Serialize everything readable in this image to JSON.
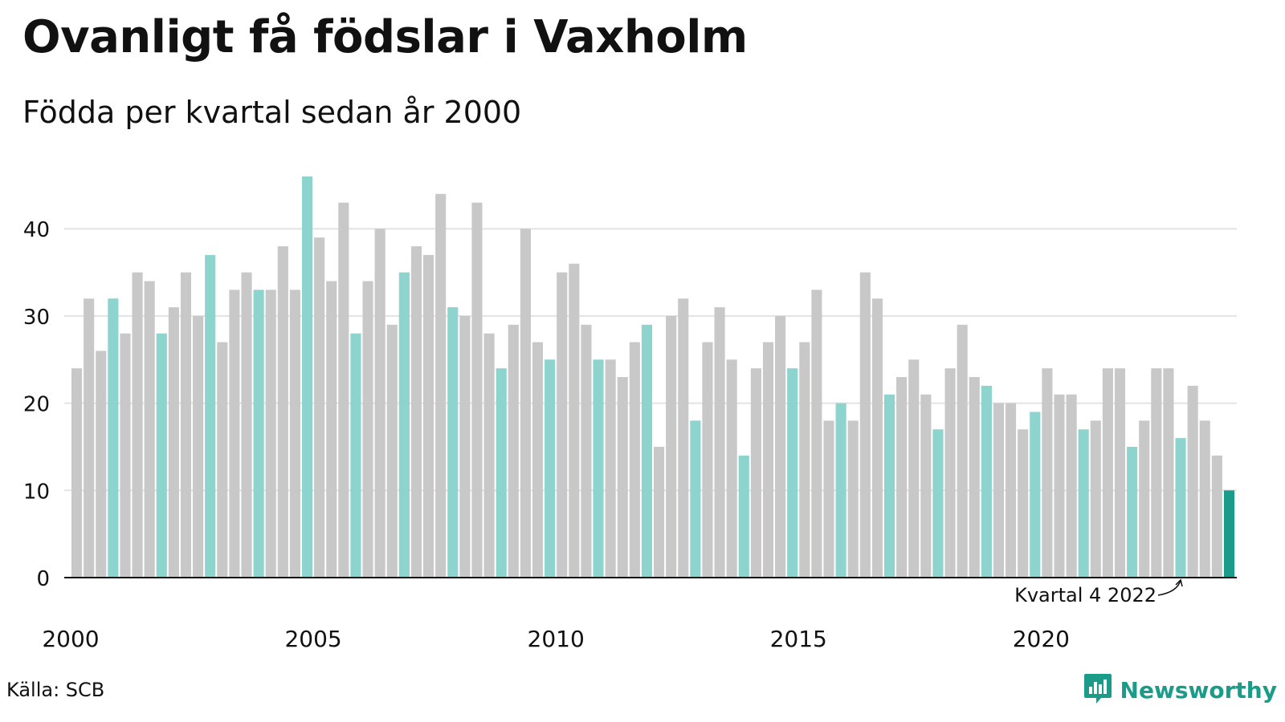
{
  "title": "Ovanligt få födslar i Vaxholm",
  "subtitle": "Födda per kvartal sedan år 2000",
  "source": "Källa: SCB",
  "brand": "Newsworthy",
  "brand_icon": "newsworthy-logo-icon",
  "colors": {
    "bar_default": "#c8c8c8",
    "bar_same_quarter": "#8dd3ce",
    "bar_latest": "#1b9b89",
    "grid": "#e3e3e3",
    "axis": "#111111",
    "brand": "#1b9b89"
  },
  "chart_data": {
    "type": "bar",
    "title": "Ovanligt få födslar i Vaxholm",
    "subtitle": "Födda per kvartal sedan år 2000",
    "xlabel": "",
    "ylabel": "",
    "ylim": [
      0,
      46
    ],
    "yticks": [
      0,
      10,
      20,
      30,
      40
    ],
    "xticks": [
      "2000",
      "2005",
      "2010",
      "2015",
      "2020"
    ],
    "grid": true,
    "highlight_quarter": 4,
    "categories": [
      "2000 K1",
      "2000 K2",
      "2000 K3",
      "2000 K4",
      "2001 K1",
      "2001 K2",
      "2001 K3",
      "2001 K4",
      "2002 K1",
      "2002 K2",
      "2002 K3",
      "2002 K4",
      "2003 K1",
      "2003 K2",
      "2003 K3",
      "2003 K4",
      "2004 K1",
      "2004 K2",
      "2004 K3",
      "2004 K4",
      "2005 K1",
      "2005 K2",
      "2005 K3",
      "2005 K4",
      "2006 K1",
      "2006 K2",
      "2006 K3",
      "2006 K4",
      "2007 K1",
      "2007 K2",
      "2007 K3",
      "2007 K4",
      "2008 K1",
      "2008 K2",
      "2008 K3",
      "2008 K4",
      "2009 K1",
      "2009 K2",
      "2009 K3",
      "2009 K4",
      "2010 K1",
      "2010 K2",
      "2010 K3",
      "2010 K4",
      "2011 K1",
      "2011 K2",
      "2011 K3",
      "2011 K4",
      "2012 K1",
      "2012 K2",
      "2012 K3",
      "2012 K4",
      "2013 K1",
      "2013 K2",
      "2013 K3",
      "2013 K4",
      "2014 K1",
      "2014 K2",
      "2014 K3",
      "2014 K4",
      "2015 K1",
      "2015 K2",
      "2015 K3",
      "2015 K4",
      "2016 K1",
      "2016 K2",
      "2016 K3",
      "2016 K4",
      "2017 K1",
      "2017 K2",
      "2017 K3",
      "2017 K4",
      "2018 K1",
      "2018 K2",
      "2018 K3",
      "2018 K4",
      "2019 K1",
      "2019 K2",
      "2019 K3",
      "2019 K4",
      "2020 K1",
      "2020 K2",
      "2020 K3",
      "2020 K4",
      "2021 K1",
      "2021 K2",
      "2021 K3",
      "2021 K4",
      "2022 K1",
      "2022 K2",
      "2022 K3",
      "2022 K4",
      "2023 K1",
      "2023 K2",
      "2023 K3",
      "2023 K4"
    ],
    "values": [
      24,
      32,
      26,
      32,
      28,
      35,
      34,
      28,
      31,
      35,
      30,
      37,
      27,
      33,
      35,
      33,
      33,
      38,
      33,
      46,
      39,
      34,
      43,
      28,
      34,
      40,
      29,
      35,
      38,
      37,
      44,
      31,
      30,
      43,
      28,
      24,
      29,
      40,
      27,
      25,
      35,
      36,
      29,
      25,
      25,
      23,
      27,
      29,
      15,
      30,
      32,
      18,
      27,
      31,
      25,
      14,
      24,
      27,
      30,
      24,
      27,
      33,
      18,
      20,
      18,
      35,
      32,
      21,
      23,
      25,
      21,
      17,
      24,
      29,
      23,
      22,
      20,
      20,
      17,
      19,
      24,
      21,
      21,
      17,
      18,
      24,
      24,
      15,
      18,
      24,
      24,
      16,
      22,
      18,
      14,
      10
    ],
    "annotations": [
      {
        "text": "Kvartal 4 2022",
        "target": "2022 K4"
      }
    ]
  }
}
